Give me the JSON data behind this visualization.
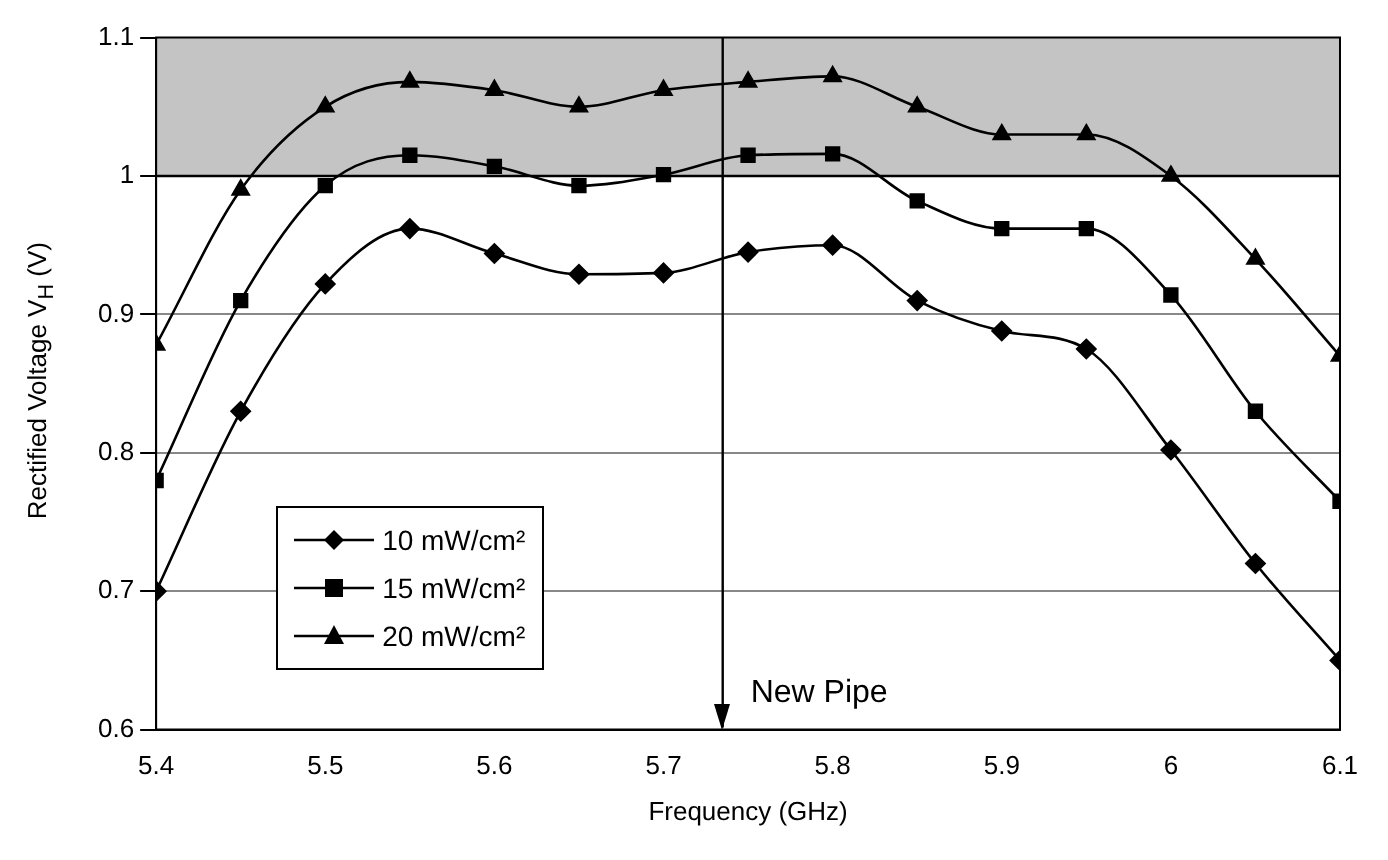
{
  "chart_data": {
    "type": "line",
    "xlabel": "Frequency (GHz)",
    "ylabel": "Rectified Voltage V$_{H}$ (V)",
    "x": [
      5.4,
      5.45,
      5.5,
      5.55,
      5.6,
      5.65,
      5.7,
      5.75,
      5.8,
      5.85,
      5.9,
      5.95,
      6.0,
      6.05,
      6.1
    ],
    "series": [
      {
        "name": "10 mW/cm²",
        "color": "#000000",
        "marker": "diamond",
        "values": [
          0.7,
          0.83,
          0.922,
          0.962,
          0.944,
          0.929,
          0.93,
          0.945,
          0.95,
          0.91,
          0.888,
          0.875,
          0.802,
          0.72,
          0.65
        ]
      },
      {
        "name": "15 mW/cm²",
        "color": "#000000",
        "marker": "square",
        "values": [
          0.78,
          0.91,
          0.993,
          1.015,
          1.007,
          0.993,
          1.001,
          1.015,
          1.016,
          0.982,
          0.962,
          0.962,
          0.914,
          0.83,
          0.765
        ]
      },
      {
        "name": "20 mW/cm²",
        "color": "#000000",
        "marker": "triangle",
        "values": [
          0.878,
          0.99,
          1.05,
          1.068,
          1.062,
          1.05,
          1.062,
          1.068,
          1.072,
          1.05,
          1.03,
          1.03,
          1.0,
          0.94,
          0.87
        ]
      }
    ],
    "xlim": [
      5.4,
      6.1
    ],
    "xticks": [
      5.4,
      5.5,
      5.6,
      5.7,
      5.8,
      5.9,
      6,
      6.1
    ],
    "ylim": [
      0.6,
      1.1
    ],
    "yticks": [
      0.6,
      0.7,
      0.8,
      0.9,
      1,
      1.1
    ],
    "grid": "y",
    "legend": "bottom left",
    "line_style": "solid",
    "bands": [
      {
        "axis": "y",
        "from": 1,
        "to": 1.1,
        "color": "#c4c4c4"
      }
    ],
    "ref_lines": [
      {
        "axis": "x",
        "value": 5.735,
        "label": "New Pipe"
      },
      {
        "axis": "y",
        "value": 1
      }
    ]
  }
}
